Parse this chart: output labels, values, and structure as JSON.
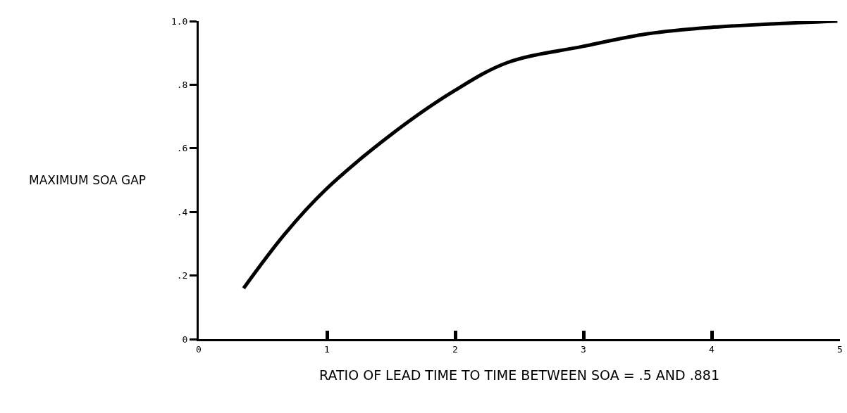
{
  "chart_data": {
    "type": "line",
    "xlabel": "RATIO OF LEAD TIME TO TIME BETWEEN SOA = .5 AND .881",
    "ylabel": "MAXIMUM SOA GAP",
    "x": [
      0.35,
      0.67,
      0.99,
      1.49,
      1.99,
      2.41,
      2.99,
      3.5,
      3.99,
      4.98
    ],
    "series": [
      {
        "color": "#000000",
        "values": [
          0.16,
          0.33,
          0.47,
          0.64,
          0.78,
          0.87,
          0.92,
          0.96,
          0.98,
          1.0
        ]
      }
    ],
    "xlim": [
      0,
      5
    ],
    "xticks": [
      0,
      1,
      2,
      3,
      4,
      5
    ],
    "ylim": [
      0,
      1
    ],
    "yticks": [
      0,
      {
        "value": 0.2,
        "label": ".2"
      },
      {
        "value": 0.4,
        "label": ".4"
      },
      {
        "value": 0.6,
        "label": ".6"
      },
      {
        "value": 0.8,
        "label": ".8"
      },
      {
        "value": 1,
        "label": "1.0"
      }
    ],
    "marker": "none",
    "line_style": "solid"
  }
}
